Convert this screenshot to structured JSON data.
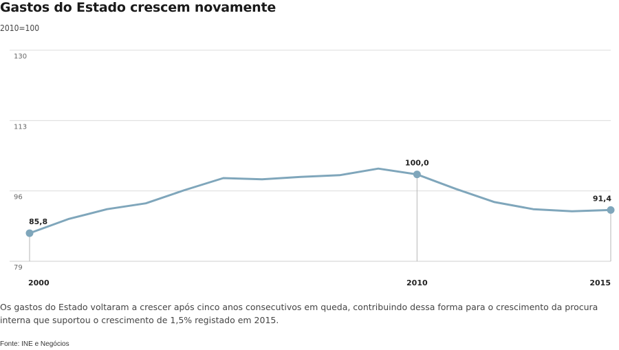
{
  "header": {
    "title": "Gastos do Estado crescem novamente",
    "subtitle": "2010=100"
  },
  "footer": {
    "caption": "Os gastos do Estado voltaram a crescer após cinco anos consecutivos em queda, contribuindo dessa forma para o crescimento da procura interna que suportou o crescimento de 1,5% registado em 2015.",
    "source": "Fonte: INE e Negócios"
  },
  "chart_data": {
    "type": "line",
    "title": "Gastos do Estado crescem novamente",
    "subtitle": "2010=100",
    "x": [
      2000,
      2001,
      2002,
      2003,
      2004,
      2005,
      2006,
      2007,
      2008,
      2009,
      2010,
      2011,
      2012,
      2013,
      2014,
      2015
    ],
    "series": [
      {
        "values": [
          85.8,
          89.2,
          91.6,
          93.0,
          96.2,
          99.1,
          98.8,
          99.4,
          99.8,
          101.4,
          100.0,
          96.5,
          93.3,
          91.6,
          91.1,
          91.4
        ]
      }
    ],
    "ylim": [
      79,
      130
    ],
    "yticks": [
      "130",
      "113",
      "96",
      "79"
    ],
    "ytick_values": [
      130,
      113,
      96,
      79
    ],
    "xticks": [
      "2000",
      "2010",
      "2015"
    ],
    "xtick_values": [
      2000,
      2010,
      2015
    ],
    "annotations": [
      {
        "x": 2000,
        "label": "85,8"
      },
      {
        "x": 2010,
        "label": "100,0"
      },
      {
        "x": 2015,
        "label": "91,4"
      }
    ],
    "grid": true,
    "line_color": "#7fa6bb"
  }
}
